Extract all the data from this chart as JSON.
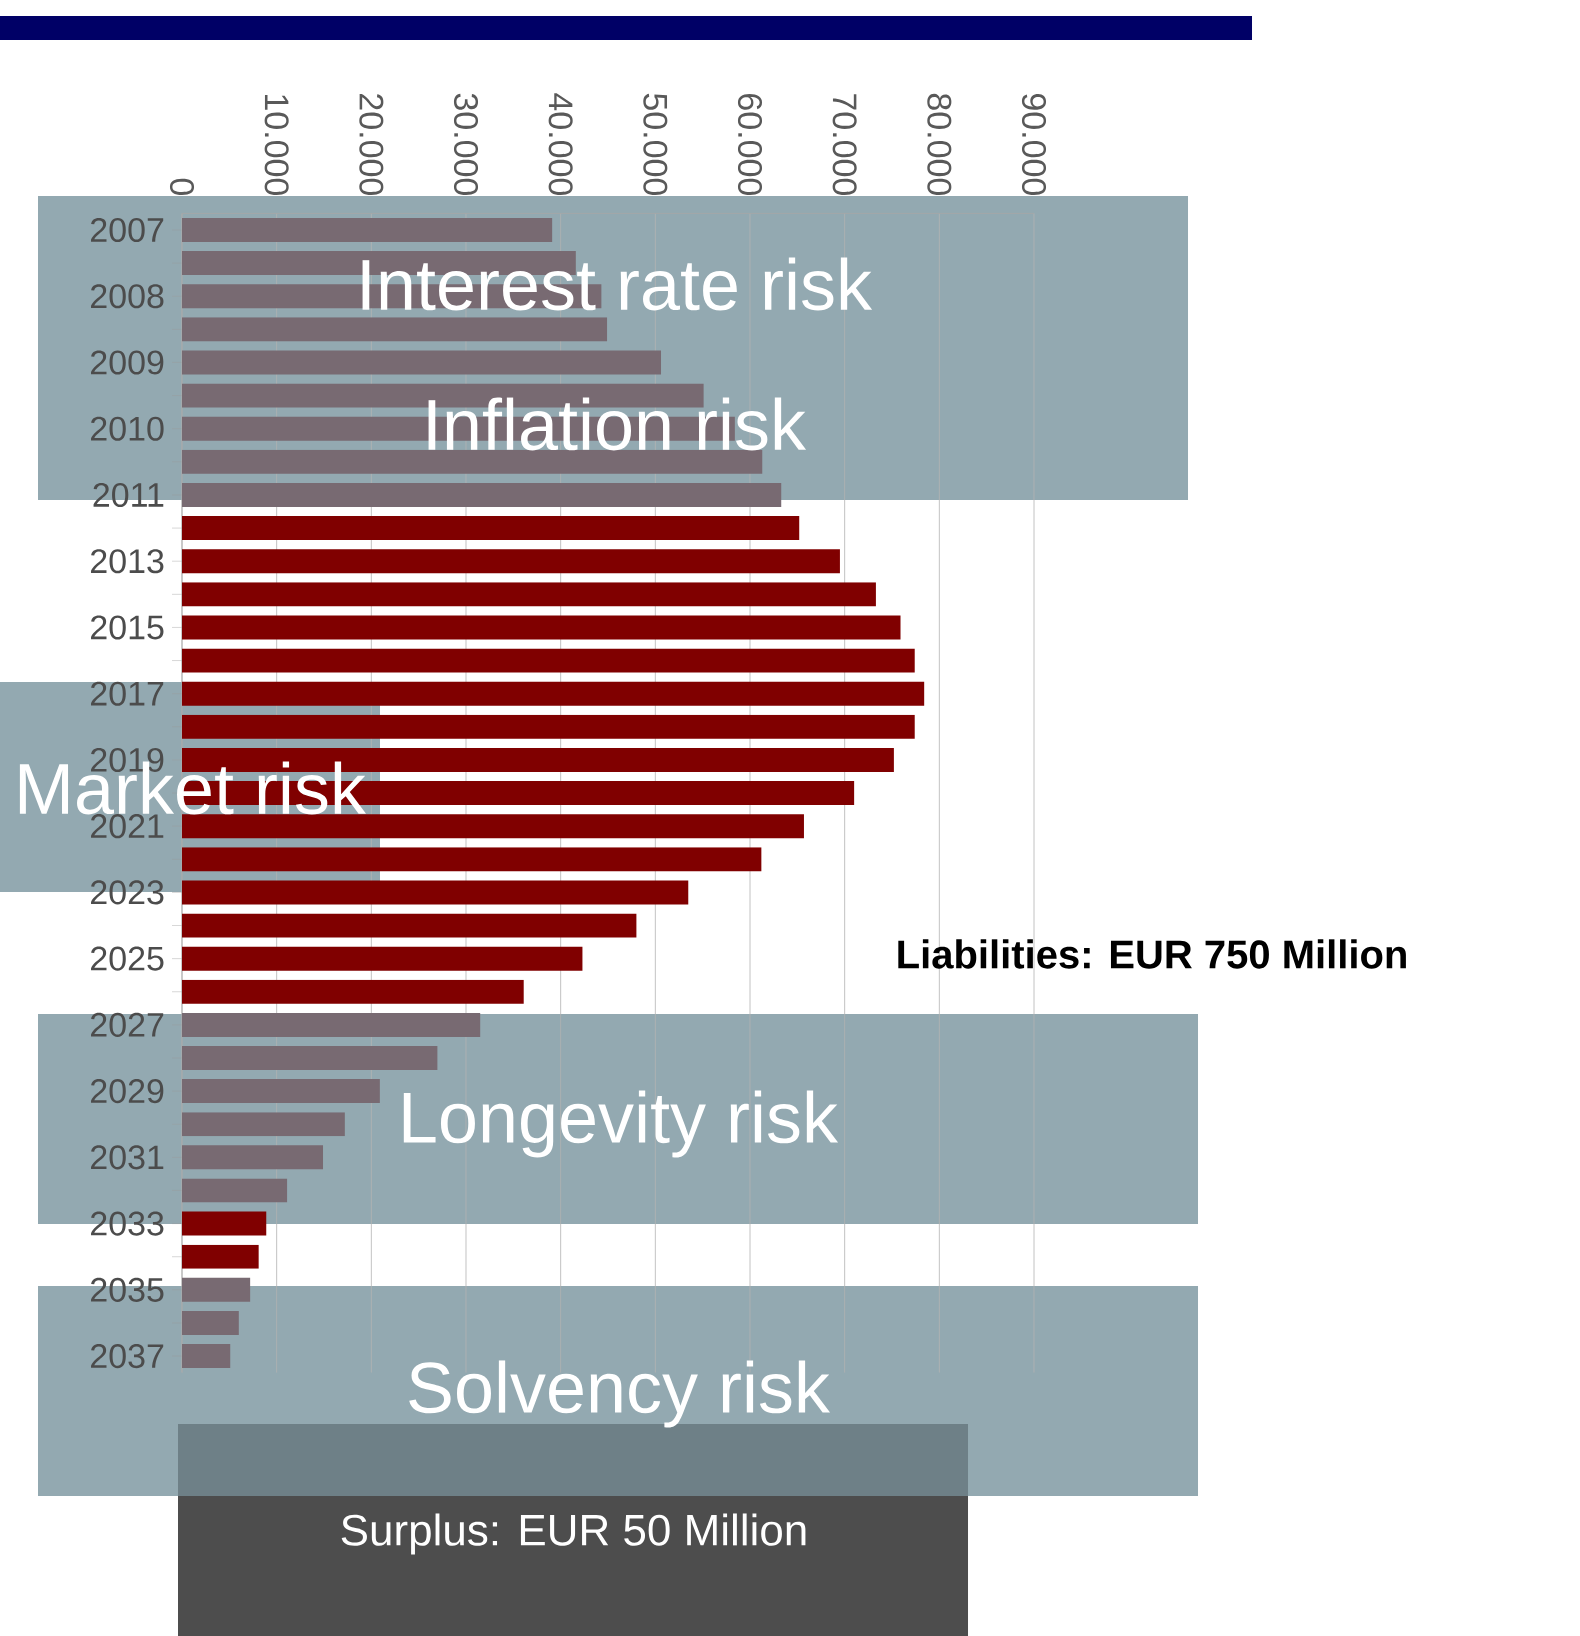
{
  "chart_data": {
    "type": "bar",
    "orientation": "horizontal",
    "categories": [
      "2007",
      null,
      "2008",
      null,
      "2009",
      null,
      "2010",
      null,
      "2011",
      null,
      "2013",
      null,
      "2015",
      null,
      "2017",
      null,
      "2019",
      null,
      "2021",
      null,
      "2023",
      null,
      "2025",
      null,
      "2027",
      null,
      "2029",
      null,
      "2031",
      null,
      "2033",
      null,
      "2035",
      null,
      "2037"
    ],
    "values": [
      39100,
      41600,
      44300,
      44900,
      50600,
      55100,
      58400,
      61300,
      63300,
      65200,
      69500,
      73300,
      75900,
      77400,
      78400,
      77400,
      75200,
      71000,
      65700,
      61200,
      53500,
      48000,
      42300,
      36100,
      31500,
      27000,
      20900,
      17200,
      14900,
      11100,
      8900,
      8100,
      7200,
      6000,
      5100
    ],
    "colors": [
      "#786a72",
      "#786a72",
      "#786a72",
      "#786a72",
      "#786a72",
      "#786a72",
      "#786a72",
      "#786a72",
      "#786a72",
      "#800000",
      "#800000",
      "#800000",
      "#800000",
      "#800000",
      "#800000",
      "#800000",
      "#800000",
      "#800000",
      "#800000",
      "#800000",
      "#800000",
      "#800000",
      "#800000",
      "#800000",
      "#786a72",
      "#786a72",
      "#786a72",
      "#786a72",
      "#786a72",
      "#786a72",
      "#800000",
      "#800000",
      "#786a72",
      "#786a72",
      "#786a72"
    ],
    "xlim": [
      0,
      90000
    ],
    "xticks": [
      0,
      {
        "value": 10000,
        "label": "10.000"
      },
      {
        "value": 20000,
        "label": "20.000"
      },
      {
        "value": 30000,
        "label": "30.000"
      },
      {
        "value": 40000,
        "label": "40.000"
      },
      {
        "value": 50000,
        "label": "50.000"
      },
      {
        "value": 60000,
        "label": "60.000"
      },
      {
        "value": 70000,
        "label": "70.000"
      },
      {
        "value": 80000,
        "label": "80.000"
      },
      {
        "value": 90000,
        "label": "90.000"
      }
    ],
    "grid": "x",
    "annotations": [
      "Interest rate risk",
      "Inflation risk",
      "Market risk",
      "Longevity risk",
      "Solvency risk",
      "Liabilities: EUR 750 Million",
      "Surplus: EUR 50 Million"
    ]
  }
}
